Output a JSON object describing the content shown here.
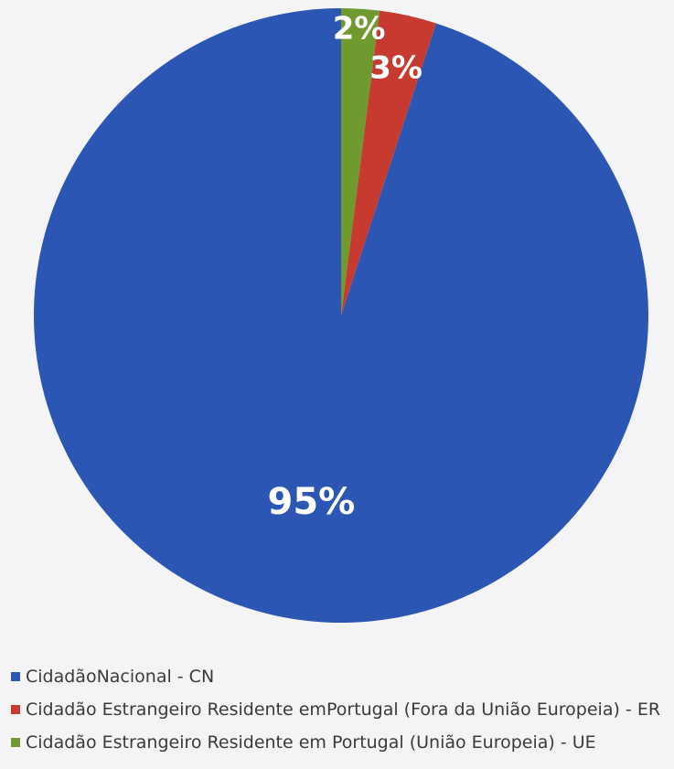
{
  "chart_data": {
    "type": "pie",
    "slices": [
      {
        "label": "CidadãoNacional - CN",
        "value": 95,
        "display": "95%",
        "color": "#2b56b3"
      },
      {
        "label": "Cidadão Estrangeiro Residente emPortugal (Fora da União Europeia) - ER",
        "value": 3,
        "display": "3%",
        "color": "#c63a30"
      },
      {
        "label": "Cidadão Estrangeiro Residente em Portugal (União Europeia) - UE",
        "value": 2,
        "display": "2%",
        "color": "#6f9a2f"
      }
    ],
    "start_angle_deg": 0,
    "direction": "counterclockwise",
    "legend_position": "bottom-left"
  }
}
